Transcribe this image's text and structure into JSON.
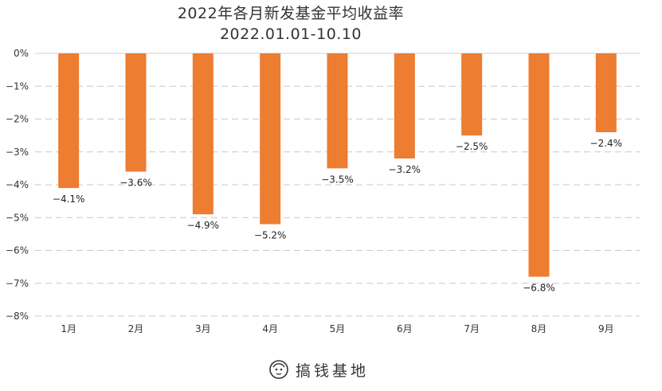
{
  "chart_data": {
    "type": "bar",
    "title": "2022年各月新发基金平均收益率",
    "subtitle": "2022.01.01-10.10",
    "categories": [
      "1月",
      "2月",
      "3月",
      "4月",
      "5月",
      "6月",
      "7月",
      "8月",
      "9月"
    ],
    "series": [
      {
        "values": [
          -4.1,
          -3.6,
          -4.9,
          -5.2,
          -3.5,
          -3.2,
          -2.5,
          -6.8,
          -2.4
        ],
        "color": "#ED7D31"
      }
    ],
    "data_labels": [
      "−4.1%",
      "−3.6%",
      "−4.9%",
      "−5.2%",
      "−3.5%",
      "−3.2%",
      "−2.5%",
      "−6.8%",
      "−2.4%"
    ],
    "y_ticks": [
      0,
      -1,
      -2,
      -3,
      -4,
      -5,
      -6,
      -7,
      -8
    ],
    "y_tick_labels": [
      "0%",
      "−1%",
      "−2%",
      "−3%",
      "−4%",
      "−5%",
      "−6%",
      "−7%",
      "−8%"
    ],
    "ylim": [
      -8,
      0
    ],
    "grid": "dashed horizontal",
    "xlabel": "",
    "ylabel": ""
  },
  "watermark": {
    "text": "搞钱基地",
    "icon": "face-logo-icon"
  }
}
